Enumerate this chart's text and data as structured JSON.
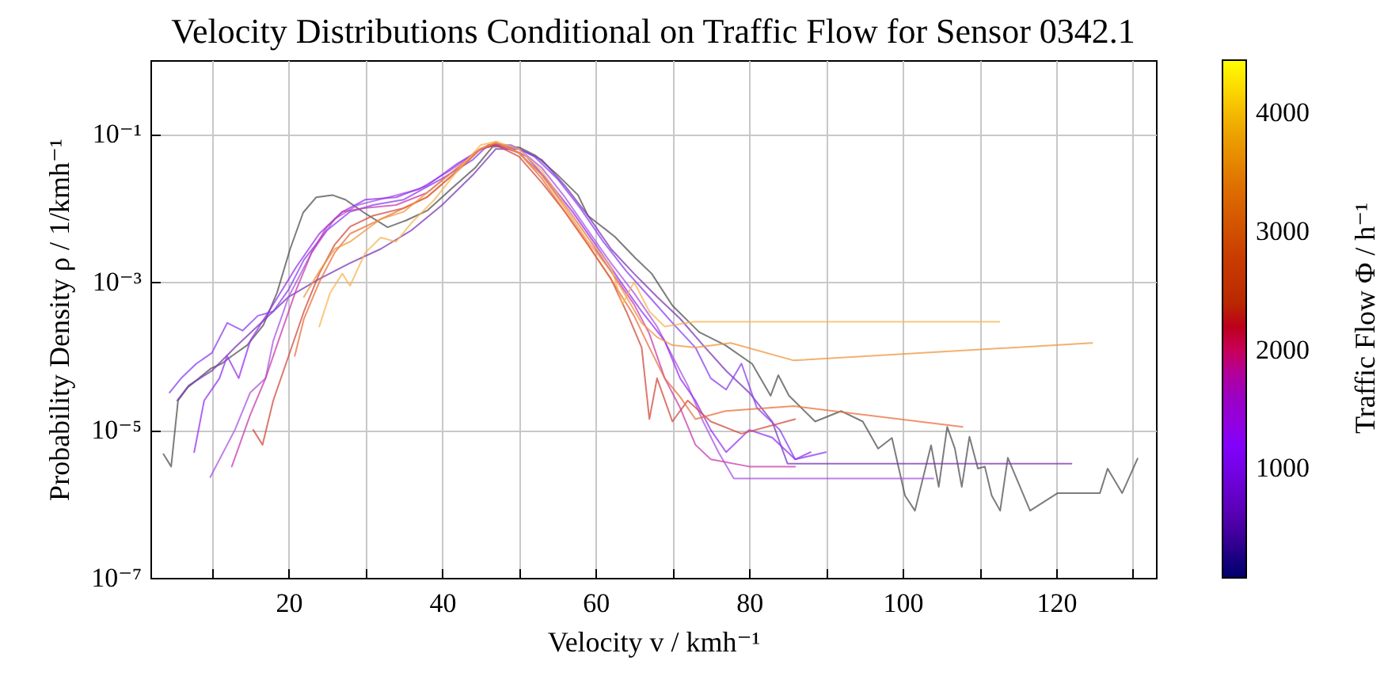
{
  "chart_data": {
    "type": "line",
    "title": "Velocity Distributions Conditional on Traffic Flow for Sensor 0342.1",
    "xlabel": "Velocity v / kmh⁻¹",
    "ylabel": "Probability Density ρ / 1/kmh⁻¹",
    "clabel": "Traffic Flow Φ / h⁻¹",
    "clim": [
      80,
      4450
    ],
    "cticks": [
      1000,
      2000,
      3000,
      4000
    ],
    "xlim": [
      2,
      133
    ],
    "xticks": [
      {
        "value": 10,
        "label": null
      },
      20,
      {
        "value": 30,
        "label": null
      },
      40,
      {
        "value": 50,
        "label": null
      },
      60,
      {
        "value": 70,
        "label": null
      },
      80,
      {
        "value": 90,
        "label": null
      },
      100,
      {
        "value": 110,
        "label": null
      },
      120,
      {
        "value": 130,
        "label": null
      }
    ],
    "ylim": [
      1e-07,
      1
    ],
    "yticks": [
      {
        "value": 1e-07,
        "label": "10⁻⁷"
      },
      {
        "value": 1e-05,
        "label": "10⁻⁵"
      },
      {
        "value": 0.001,
        "label": "10⁻³"
      },
      {
        "value": 0.1,
        "label": "10⁻¹"
      }
    ],
    "log": "y",
    "grid": true,
    "legend": false,
    "line_style": "solid",
    "marker": "none",
    "series": [
      {
        "color": "#505050",
        "x": [
          3.7,
          4.7,
          5.6,
          6.8,
          8.2,
          9.9,
          11.3,
          12.6,
          14.6,
          16.7,
          18.5,
          20.2,
          21.9,
          23.6,
          25.7,
          27.4,
          29.8,
          32.9,
          35.3,
          38.1,
          41.4,
          44.3,
          46.6,
          50.1,
          52.2,
          54.9,
          57.7,
          59,
          62.5,
          65.2,
          67.3,
          70,
          73.5,
          76.9,
          80.4,
          82.8,
          83.8,
          85.2,
          88.6,
          92,
          94.8,
          96.8,
          98.6,
          100.3,
          101.6,
          103.7,
          104.7,
          105.8,
          106.8,
          107.7,
          108.7,
          109.8,
          110.7,
          111.6,
          112.7,
          113.7,
          116.6,
          120.2,
          125.7,
          126.7,
          128.6,
          130.6
        ],
        "values": [
          4.7e-06,
          3.2e-06,
          2.5e-05,
          3.7e-05,
          4.9e-05,
          6.8e-05,
          7.9e-05,
          0.0001,
          0.00014,
          0.00026,
          0.00072,
          0.0028,
          0.0087,
          0.014,
          0.015,
          0.013,
          0.0087,
          0.0055,
          0.0068,
          0.0093,
          0.019,
          0.035,
          0.068,
          0.066,
          0.051,
          0.029,
          0.015,
          0.0079,
          0.0041,
          0.0021,
          0.0013,
          0.00048,
          0.00021,
          0.00014,
          7.8e-05,
          2.9e-05,
          5.5e-05,
          2.9e-05,
          1.3e-05,
          1.8e-05,
          1.3e-05,
          5.6e-06,
          7.8e-06,
          1.3e-06,
          8.1e-07,
          6.2e-06,
          1.7e-06,
          1.1e-05,
          5.6e-06,
          1.7e-06,
          8.1e-06,
          3e-06,
          3.2e-06,
          1.3e-06,
          8.1e-07,
          4.2e-06,
          8.1e-07,
          1.4e-06,
          1.4e-06,
          3e-06,
          1.4e-06,
          4.1e-06
        ]
      },
      {
        "color": "#7b35b5",
        "x": [
          5.5,
          7,
          10,
          13,
          17,
          20,
          24,
          28,
          32,
          36,
          40,
          44,
          47,
          50,
          53,
          56,
          59,
          62,
          65,
          68,
          71,
          74,
          77,
          80,
          83,
          85,
          100,
          122
        ],
        "values": [
          2.5e-05,
          4e-05,
          6.3e-05,
          0.00013,
          0.00032,
          0.00063,
          0.0011,
          0.0018,
          0.0028,
          0.005,
          0.011,
          0.028,
          0.063,
          0.063,
          0.045,
          0.02,
          0.0079,
          0.0028,
          0.0013,
          0.00063,
          0.00032,
          0.00014,
          6.3e-05,
          3.2e-05,
          1.3e-05,
          3.5e-06,
          3.5e-06,
          3.5e-06
        ]
      },
      {
        "color": "#8a3ff0",
        "x": [
          4.5,
          6,
          8,
          10,
          12,
          14,
          16,
          18,
          20,
          22,
          25,
          28,
          31,
          35,
          40,
          44,
          46,
          49,
          52,
          55,
          58,
          61,
          64,
          67,
          70,
          73,
          75,
          77,
          79,
          81,
          84,
          86,
          90
        ],
        "values": [
          3.2e-05,
          5e-05,
          7.9e-05,
          0.00011,
          0.00028,
          0.00022,
          0.00035,
          0.0004,
          0.00079,
          0.002,
          0.005,
          0.0089,
          0.011,
          0.013,
          0.025,
          0.045,
          0.071,
          0.071,
          0.05,
          0.025,
          0.01,
          0.0035,
          0.0014,
          0.00063,
          0.00028,
          0.00013,
          5e-05,
          3.5e-05,
          7.9e-05,
          2e-05,
          1e-05,
          4e-06,
          5e-06
        ]
      },
      {
        "color": "#a855e0",
        "x": [
          9.8,
          13,
          15,
          17,
          18,
          20,
          23,
          26,
          29,
          33,
          37,
          41,
          45,
          47,
          50,
          53,
          56,
          59,
          62,
          65,
          68,
          70,
          72,
          74,
          76,
          78,
          90,
          104
        ],
        "values": [
          2.3e-06,
          1e-05,
          3.2e-05,
          5e-05,
          0.00016,
          0.00063,
          0.0025,
          0.0071,
          0.011,
          0.014,
          0.018,
          0.032,
          0.063,
          0.076,
          0.063,
          0.035,
          0.014,
          0.005,
          0.0018,
          0.00071,
          0.00025,
          0.0001,
          4e-05,
          1.3e-05,
          5e-06,
          2.2e-06,
          2.2e-06,
          2.2e-06
        ]
      },
      {
        "color": "#9632f0",
        "x": [
          7.7,
          9,
          11,
          12,
          13.5,
          15,
          18,
          21,
          24,
          27,
          30,
          34,
          38,
          42,
          46,
          48,
          51,
          54,
          57,
          60,
          63,
          66,
          69,
          71,
          73,
          75,
          77,
          80,
          83,
          86,
          88
        ],
        "values": [
          5e-06,
          2.5e-05,
          5e-05,
          0.0001,
          5e-05,
          0.00016,
          0.0005,
          0.0016,
          0.0045,
          0.0089,
          0.013,
          0.014,
          0.02,
          0.04,
          0.071,
          0.071,
          0.05,
          0.022,
          0.0089,
          0.0032,
          0.0011,
          0.0004,
          0.00016,
          5e-05,
          2.5e-05,
          1e-05,
          5e-06,
          1e-05,
          7.9e-06,
          4e-06,
          5e-06
        ]
      },
      {
        "color": "#c83cb0",
        "x": [
          12.6,
          15,
          17,
          19,
          21,
          23,
          25,
          27,
          30,
          34,
          38,
          42,
          45,
          47,
          50,
          53,
          56,
          59,
          62,
          65,
          67,
          69,
          71,
          73,
          75,
          80,
          86
        ],
        "values": [
          3.2e-06,
          1.6e-05,
          5e-05,
          0.0002,
          0.00079,
          0.0025,
          0.0056,
          0.0089,
          0.01,
          0.011,
          0.016,
          0.035,
          0.063,
          0.071,
          0.056,
          0.028,
          0.011,
          0.004,
          0.0014,
          0.0005,
          0.0002,
          5e-05,
          2e-05,
          6.3e-06,
          4e-06,
          3.2e-06,
          3.2e-06
        ]
      },
      {
        "color": "#d24a3c",
        "x": [
          15.4,
          16.6,
          18,
          20,
          22,
          24,
          26,
          28,
          31,
          35,
          38,
          42,
          45,
          47,
          50,
          53,
          56,
          59,
          62,
          64,
          66,
          67,
          68,
          70,
          72,
          75,
          79,
          86
        ],
        "values": [
          1e-05,
          6.3e-06,
          2.5e-05,
          0.0001,
          0.0004,
          0.0013,
          0.0032,
          0.0056,
          0.0079,
          0.01,
          0.014,
          0.032,
          0.063,
          0.071,
          0.05,
          0.022,
          0.0089,
          0.0032,
          0.0011,
          0.0004,
          0.00013,
          1.4e-05,
          5e-05,
          1.3e-05,
          2.5e-05,
          1.3e-05,
          8.9e-06,
          1.4e-05
        ]
      },
      {
        "color": "#e8703c",
        "x": [
          20.8,
          22,
          24,
          26,
          28,
          31,
          34,
          38,
          42,
          45,
          47,
          50,
          53,
          56,
          59,
          62,
          65,
          67,
          69,
          71,
          73,
          76.9,
          85.8,
          107.8
        ],
        "values": [
          0.0001,
          0.00032,
          0.001,
          0.0025,
          0.0045,
          0.0063,
          0.0089,
          0.014,
          0.032,
          0.063,
          0.076,
          0.056,
          0.025,
          0.0089,
          0.0032,
          0.0011,
          0.00035,
          0.00013,
          5e-05,
          2.8e-05,
          1.4e-05,
          1.8e-05,
          2.1e-05,
          1.1e-05
        ]
      },
      {
        "color": "#f0963c",
        "x": [
          22,
          24,
          26,
          28,
          30,
          32,
          35,
          38,
          42,
          45,
          47,
          50,
          53,
          56,
          59,
          62,
          64,
          66,
          68,
          70,
          73,
          77.6,
          85.8,
          124.7
        ],
        "values": [
          0.00063,
          0.0014,
          0.0028,
          0.0035,
          0.005,
          0.0071,
          0.0089,
          0.016,
          0.035,
          0.063,
          0.079,
          0.056,
          0.028,
          0.01,
          0.0035,
          0.0014,
          0.00063,
          0.00028,
          0.00018,
          0.00014,
          0.00013,
          0.00015,
          8.7e-05,
          0.00015
        ]
      },
      {
        "color": "#f8b450",
        "x": [
          24,
          25.4,
          27,
          28,
          30,
          32,
          34,
          36,
          39,
          42,
          45,
          47,
          50,
          53,
          56,
          59,
          62,
          63.5,
          65,
          67,
          69,
          72.8,
          112.6
        ],
        "values": [
          0.00025,
          0.00071,
          0.0013,
          0.00089,
          0.0025,
          0.004,
          0.0035,
          0.0063,
          0.013,
          0.032,
          0.071,
          0.079,
          0.063,
          0.032,
          0.011,
          0.004,
          0.0016,
          0.0005,
          0.001,
          0.0004,
          0.00025,
          0.00029,
          0.00029
        ]
      }
    ]
  }
}
